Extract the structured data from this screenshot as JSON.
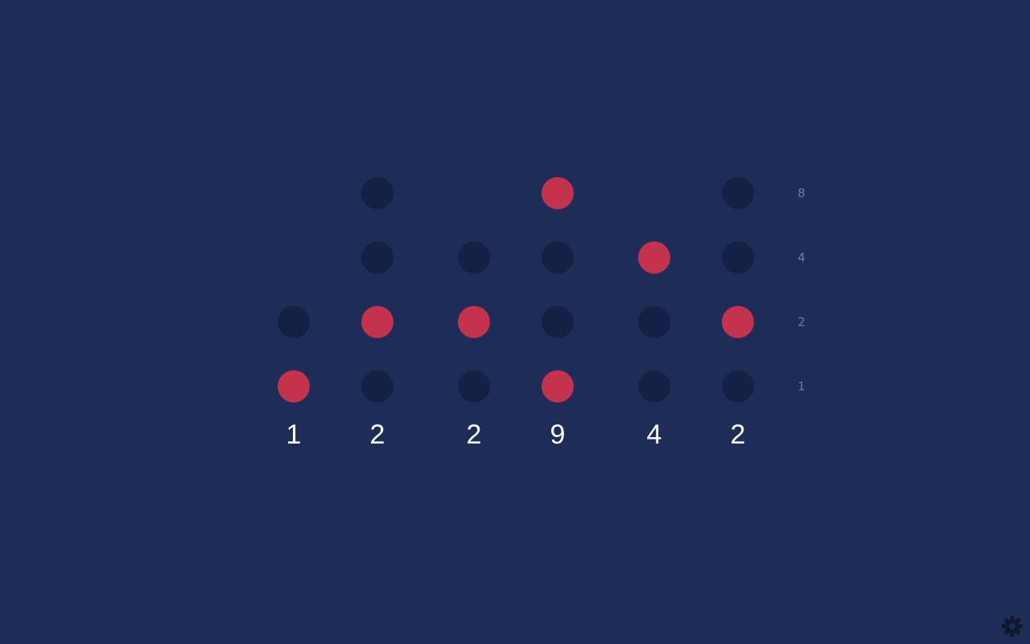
{
  "clock": {
    "columns": [
      {
        "id": "hour-tens",
        "digit": "1",
        "bits": [
          1,
          2
        ]
      },
      {
        "id": "hour-ones",
        "digit": "2",
        "bits": [
          1,
          2,
          4,
          8
        ]
      },
      {
        "id": "minute-tens",
        "digit": "2",
        "bits": [
          1,
          2,
          4
        ]
      },
      {
        "id": "minute-ones",
        "digit": "9",
        "bits": [
          1,
          2,
          4,
          8
        ]
      },
      {
        "id": "second-tens",
        "digit": "4",
        "bits": [
          1,
          2,
          4
        ]
      },
      {
        "id": "second-ones",
        "digit": "2",
        "bits": [
          1,
          2,
          4,
          8
        ]
      }
    ],
    "bit_labels": [
      "8",
      "4",
      "2",
      "1"
    ]
  },
  "colors": {
    "background": "#1e2d58",
    "dot_off": "#152144",
    "dot_on": "#c5324d",
    "digit": "#ffffff",
    "bit_label": "#6e7aa3",
    "settings_icon": "#10182f"
  },
  "icons": {
    "settings": "gear-icon"
  }
}
